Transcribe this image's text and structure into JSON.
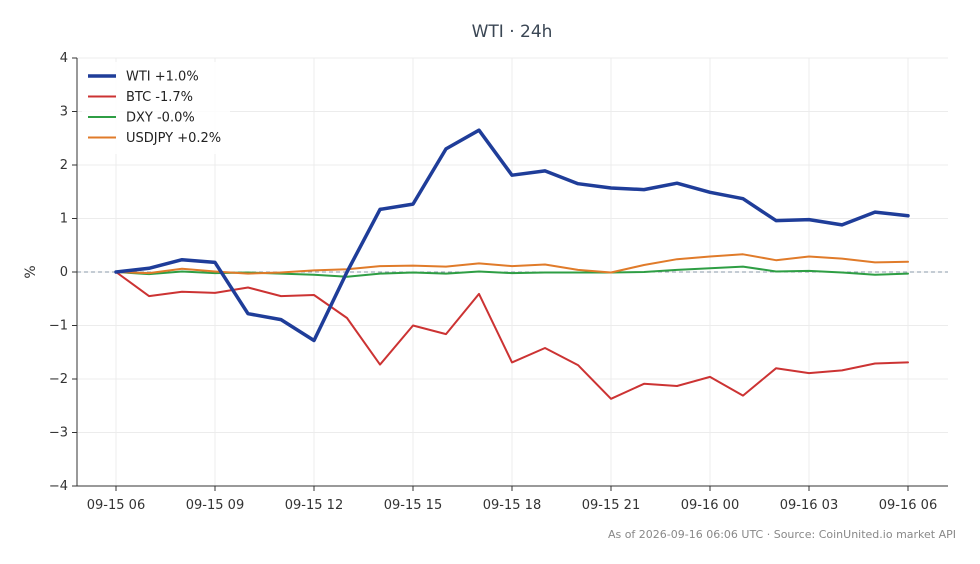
{
  "chart_data": {
    "type": "line",
    "title": "WTI · 24h",
    "ylabel": "%",
    "xlabel": "",
    "ylim": [
      -4,
      4
    ],
    "yticks": [
      -4,
      -3,
      -2,
      -1,
      0,
      1,
      2,
      3,
      4
    ],
    "ytick_labels": [
      "−4",
      "−3",
      "−2",
      "−1",
      "0",
      "1",
      "2",
      "3",
      "4"
    ],
    "xticks": [
      {
        "index": 0,
        "label": "09-15 06"
      },
      {
        "index": 3,
        "label": "09-15 09"
      },
      {
        "index": 6,
        "label": "09-15 12"
      },
      {
        "index": 9,
        "label": "09-15 15"
      },
      {
        "index": 12,
        "label": "09-15 18"
      },
      {
        "index": 15,
        "label": "09-15 21"
      },
      {
        "index": 18,
        "label": "09-16 00"
      },
      {
        "index": 21,
        "label": "09-16 03"
      },
      {
        "index": 24,
        "label": "09-16 06"
      }
    ],
    "x": [
      "09-15 06",
      "09-15 07",
      "09-15 08",
      "09-15 09",
      "09-15 10",
      "09-15 11",
      "09-15 12",
      "09-15 13",
      "09-15 14",
      "09-15 15",
      "09-15 16",
      "09-15 17",
      "09-15 18",
      "09-15 19",
      "09-15 20",
      "09-15 21",
      "09-15 22",
      "09-15 23",
      "09-16 00",
      "09-16 01",
      "09-16 02",
      "09-16 03",
      "09-16 04",
      "09-16 05",
      "09-16 06"
    ],
    "grid": true,
    "zero_line": true,
    "legend_position": "top-left",
    "series": [
      {
        "name": "WTI +1.0%",
        "color": "#1f3d99",
        "width": 3.5,
        "values": [
          0.0,
          0.07,
          0.23,
          0.18,
          -0.78,
          -0.89,
          -1.28,
          0.0,
          1.17,
          1.27,
          2.3,
          2.65,
          1.81,
          1.89,
          1.65,
          1.57,
          1.54,
          1.66,
          1.49,
          1.37,
          0.96,
          0.98,
          0.88,
          1.12,
          1.05
        ]
      },
      {
        "name": "BTC -1.7%",
        "color": "#cc3333",
        "width": 2,
        "values": [
          0.0,
          -0.45,
          -0.37,
          -0.39,
          -0.29,
          -0.45,
          -0.43,
          -0.86,
          -1.73,
          -1.0,
          -1.16,
          -0.41,
          -1.69,
          -1.42,
          -1.74,
          -2.37,
          -2.09,
          -2.13,
          -1.96,
          -2.31,
          -1.8,
          -1.89,
          -1.84,
          -1.71,
          -1.69
        ]
      },
      {
        "name": "DXY -0.0%",
        "color": "#2e9e44",
        "width": 2,
        "values": [
          0.0,
          -0.04,
          0.01,
          -0.02,
          -0.01,
          -0.03,
          -0.05,
          -0.09,
          -0.03,
          -0.01,
          -0.03,
          0.01,
          -0.02,
          -0.01,
          -0.01,
          -0.01,
          0.0,
          0.04,
          0.07,
          0.1,
          0.01,
          0.02,
          -0.01,
          -0.05,
          -0.03
        ]
      },
      {
        "name": "USDJPY +0.2%",
        "color": "#e07b2a",
        "width": 2,
        "values": [
          0.0,
          -0.02,
          0.06,
          0.01,
          -0.03,
          -0.01,
          0.03,
          0.05,
          0.11,
          0.12,
          0.1,
          0.16,
          0.11,
          0.14,
          0.04,
          -0.01,
          0.13,
          0.24,
          0.29,
          0.33,
          0.22,
          0.29,
          0.25,
          0.18,
          0.19
        ]
      }
    ]
  },
  "footer": {
    "note": "As of 2026-09-16 06:06 UTC · Source: CoinUnited.io market API"
  }
}
